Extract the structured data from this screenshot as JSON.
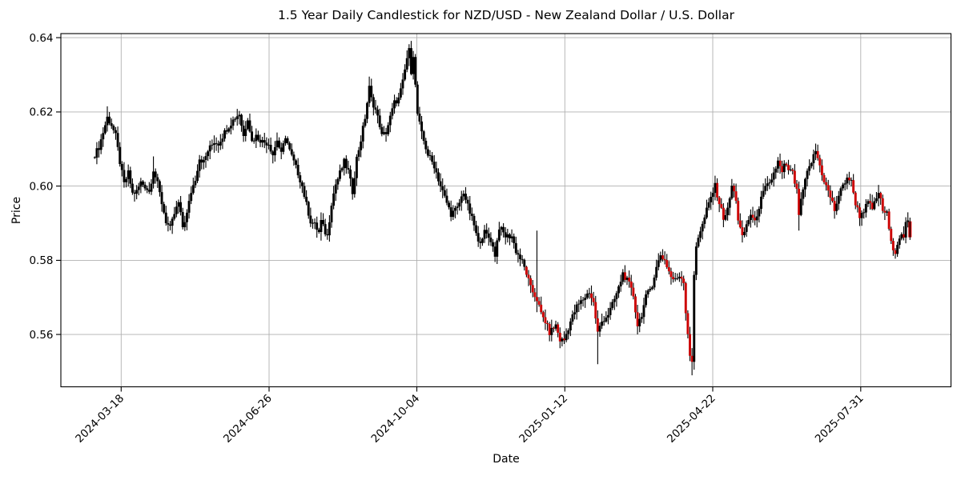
{
  "chart_data": {
    "type": "candlestick",
    "title": "1.5 Year Daily Candlestick for NZD/USD - New Zealand Dollar / U.S. Dollar",
    "xlabel": "Date",
    "ylabel": "Price",
    "instrument": "NZD/USD",
    "period": "1.5 Year Daily",
    "grid": true,
    "legend": false,
    "y_axis": {
      "ticks": [
        0.64,
        0.62,
        0.6,
        0.58,
        0.56
      ],
      "min": 0.5459,
      "max": 0.6411,
      "tick_decimals": 2
    },
    "x_axis": {
      "n_candles": 390,
      "ticks": [
        {
          "label": "2024-03-18",
          "i": 12.6
        },
        {
          "label": "2024-06-26",
          "i": 83.2
        },
        {
          "label": "2024-10-04",
          "i": 153.7
        },
        {
          "label": "2025-01-12",
          "i": 224.3
        },
        {
          "label": "2025-04-22",
          "i": 294.9
        },
        {
          "label": "2025-07-31",
          "i": 365.5
        }
      ],
      "tick_rotation_deg": 45
    },
    "colors": {
      "up": "#000000",
      "down": "#cc0000",
      "grid": "#b0b0b0",
      "spine": "#000000",
      "text": "#000000",
      "background": "#ffffff"
    },
    "style": {
      "wick_width": 1.1,
      "body_width": 2.9,
      "last_body_width": 4,
      "red_from_index": 206,
      "noise_close_amp": 0.00085,
      "noise_wick_amp": 0.0019,
      "noise_wick_floor": 0.0003
    },
    "price_path": [
      [
        0,
        0.6085
      ],
      [
        2,
        0.6105
      ],
      [
        4,
        0.6145
      ],
      [
        6,
        0.6185
      ],
      [
        8,
        0.6165
      ],
      [
        10,
        0.6135
      ],
      [
        12,
        0.6065
      ],
      [
        14,
        0.6005
      ],
      [
        16,
        0.6035
      ],
      [
        18,
        0.598
      ],
      [
        20,
        0.5985
      ],
      [
        22,
        0.601
      ],
      [
        24,
        0.6
      ],
      [
        26,
        0.5985
      ],
      [
        28,
        0.6045
      ],
      [
        30,
        0.6005
      ],
      [
        32,
        0.5955
      ],
      [
        34,
        0.5905
      ],
      [
        36,
        0.5885
      ],
      [
        38,
        0.5925
      ],
      [
        40,
        0.5955
      ],
      [
        42,
        0.589
      ],
      [
        44,
        0.5925
      ],
      [
        46,
        0.5985
      ],
      [
        48,
        0.602
      ],
      [
        50,
        0.6075
      ],
      [
        52,
        0.6065
      ],
      [
        54,
        0.6095
      ],
      [
        57,
        0.612
      ],
      [
        59,
        0.6115
      ],
      [
        61,
        0.6135
      ],
      [
        63,
        0.6155
      ],
      [
        65,
        0.617
      ],
      [
        67,
        0.6185
      ],
      [
        69,
        0.6195
      ],
      [
        71,
        0.6135
      ],
      [
        73,
        0.6185
      ],
      [
        75,
        0.612
      ],
      [
        77,
        0.6135
      ],
      [
        80,
        0.612
      ],
      [
        83,
        0.6115
      ],
      [
        85,
        0.6085
      ],
      [
        87,
        0.6125
      ],
      [
        89,
        0.6085
      ],
      [
        91,
        0.6135
      ],
      [
        93,
        0.6095
      ],
      [
        95,
        0.6065
      ],
      [
        97,
        0.6035
      ],
      [
        99,
        0.6
      ],
      [
        101,
        0.595
      ],
      [
        103,
        0.5905
      ],
      [
        105,
        0.5895
      ],
      [
        107,
        0.5875
      ],
      [
        108,
        0.5905
      ],
      [
        110,
        0.5875
      ],
      [
        111,
        0.5865
      ],
      [
        113,
        0.5955
      ],
      [
        115,
        0.6005
      ],
      [
        117,
        0.6035
      ],
      [
        119,
        0.6065
      ],
      [
        121,
        0.604
      ],
      [
        123,
        0.5985
      ],
      [
        125,
        0.6075
      ],
      [
        127,
        0.6125
      ],
      [
        129,
        0.6185
      ],
      [
        131,
        0.6265
      ],
      [
        132,
        0.6235
      ],
      [
        134,
        0.6205
      ],
      [
        136,
        0.6165
      ],
      [
        137,
        0.6135
      ],
      [
        139,
        0.6145
      ],
      [
        141,
        0.6185
      ],
      [
        143,
        0.6225
      ],
      [
        145,
        0.6235
      ],
      [
        147,
        0.628
      ],
      [
        149,
        0.6345
      ],
      [
        150,
        0.6365
      ],
      [
        151,
        0.631
      ],
      [
        152,
        0.6355
      ],
      [
        153,
        0.627
      ],
      [
        154,
        0.6195
      ],
      [
        156,
        0.614
      ],
      [
        159,
        0.6085
      ],
      [
        162,
        0.6055
      ],
      [
        165,
        0.6
      ],
      [
        168,
        0.5955
      ],
      [
        170,
        0.5925
      ],
      [
        173,
        0.594
      ],
      [
        176,
        0.5985
      ],
      [
        178,
        0.5945
      ],
      [
        181,
        0.5895
      ],
      [
        183,
        0.5845
      ],
      [
        186,
        0.5875
      ],
      [
        189,
        0.5855
      ],
      [
        191,
        0.5815
      ],
      [
        193,
        0.589
      ],
      [
        196,
        0.5865
      ],
      [
        199,
        0.5865
      ],
      [
        201,
        0.5825
      ],
      [
        204,
        0.5795
      ],
      [
        206,
        0.5765
      ],
      [
        208,
        0.5725
      ],
      [
        210,
        0.5705
      ],
      [
        211,
        0.5695
      ],
      [
        213,
        0.5655
      ],
      [
        215,
        0.5635
      ],
      [
        217,
        0.5605
      ],
      [
        220,
        0.5625
      ],
      [
        222,
        0.5585
      ],
      [
        224,
        0.5585
      ],
      [
        227,
        0.5635
      ],
      [
        230,
        0.5675
      ],
      [
        233,
        0.5695
      ],
      [
        236,
        0.5715
      ],
      [
        238,
        0.5685
      ],
      [
        240,
        0.5605
      ],
      [
        242,
        0.5635
      ],
      [
        245,
        0.5655
      ],
      [
        247,
        0.568
      ],
      [
        250,
        0.5725
      ],
      [
        252,
        0.5765
      ],
      [
        255,
        0.5735
      ],
      [
        257,
        0.5705
      ],
      [
        259,
        0.5625
      ],
      [
        261,
        0.5655
      ],
      [
        263,
        0.57
      ],
      [
        266,
        0.5735
      ],
      [
        268,
        0.578
      ],
      [
        270,
        0.5815
      ],
      [
        272,
        0.58
      ],
      [
        275,
        0.5755
      ],
      [
        277,
        0.5745
      ],
      [
        279,
        0.576
      ],
      [
        281,
        0.5745
      ],
      [
        282,
        0.566
      ],
      [
        283,
        0.5605
      ],
      [
        284,
        0.5545
      ],
      [
        285,
        0.552
      ],
      [
        286,
        0.576
      ],
      [
        287,
        0.584
      ],
      [
        288,
        0.5865
      ],
      [
        290,
        0.5895
      ],
      [
        292,
        0.5935
      ],
      [
        294,
        0.597
      ],
      [
        296,
        0.6
      ],
      [
        298,
        0.5955
      ],
      [
        300,
        0.5915
      ],
      [
        302,
        0.5935
      ],
      [
        304,
        0.6
      ],
      [
        306,
        0.5965
      ],
      [
        307,
        0.591
      ],
      [
        309,
        0.586
      ],
      [
        311,
        0.5895
      ],
      [
        313,
        0.5925
      ],
      [
        315,
        0.59
      ],
      [
        316,
        0.5925
      ],
      [
        318,
        0.5965
      ],
      [
        320,
        0.5995
      ],
      [
        322,
        0.6005
      ],
      [
        324,
        0.6035
      ],
      [
        326,
        0.6065
      ],
      [
        328,
        0.6035
      ],
      [
        329,
        0.6055
      ],
      [
        331,
        0.6045
      ],
      [
        333,
        0.6035
      ],
      [
        335,
        0.5985
      ],
      [
        336,
        0.5925
      ],
      [
        338,
        0.599
      ],
      [
        340,
        0.6035
      ],
      [
        342,
        0.6065
      ],
      [
        344,
        0.6095
      ],
      [
        346,
        0.6055
      ],
      [
        348,
        0.6015
      ],
      [
        350,
        0.5985
      ],
      [
        352,
        0.5955
      ],
      [
        353,
        0.5935
      ],
      [
        355,
        0.5975
      ],
      [
        357,
        0.6
      ],
      [
        359,
        0.6025
      ],
      [
        361,
        0.601
      ],
      [
        363,
        0.5955
      ],
      [
        365,
        0.592
      ],
      [
        367,
        0.5935
      ],
      [
        369,
        0.5955
      ],
      [
        371,
        0.594
      ],
      [
        373,
        0.5965
      ],
      [
        374,
        0.5985
      ],
      [
        376,
        0.5935
      ],
      [
        378,
        0.5925
      ],
      [
        380,
        0.5845
      ],
      [
        382,
        0.5825
      ],
      [
        384,
        0.5865
      ],
      [
        386,
        0.5865
      ],
      [
        387,
        0.5895
      ],
      [
        388,
        0.5905
      ],
      [
        389,
        0.5875
      ]
    ],
    "wick_overrides": [
      {
        "i": 6,
        "h": 0.6215
      },
      {
        "i": 28,
        "h": 0.608
      },
      {
        "i": 108,
        "l": 0.5853
      },
      {
        "i": 131,
        "h": 0.6295
      },
      {
        "i": 150,
        "h": 0.6375
      },
      {
        "i": 211,
        "h": 0.588,
        "l": 0.566
      },
      {
        "i": 240,
        "l": 0.552
      },
      {
        "i": 285,
        "l": 0.549
      },
      {
        "i": 336,
        "l": 0.588
      }
    ],
    "last_candle": {
      "o": 0.5905,
      "h": 0.5915,
      "l": 0.5855,
      "c": 0.5862
    }
  }
}
